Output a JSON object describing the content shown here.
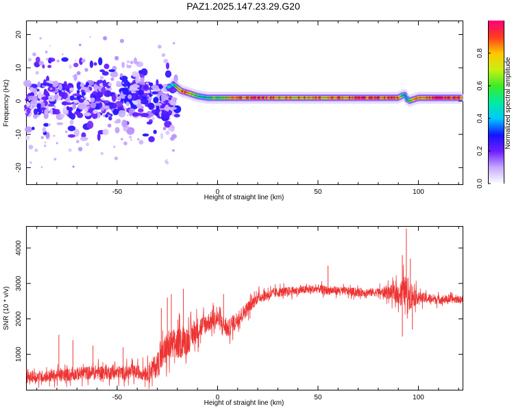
{
  "title": "PAZ1.2025.147.23.29.G20",
  "colors": {
    "snr_line": "#ee3333",
    "spec_low": "#a38cff",
    "spec_mid_blue": "#6a1aff",
    "spec_cyan": "#00e0ff",
    "spec_green": "#33ee33",
    "spec_red": "#ff3030"
  },
  "colorbar": {
    "label": "Normalized spectral amplitude",
    "ticks": [
      "0.0",
      "0.2",
      "0.4",
      "0.6",
      "0.8"
    ],
    "tick_values": [
      0.0,
      0.2,
      0.4,
      0.6,
      0.8
    ],
    "range": [
      0,
      1
    ],
    "colormap": "rainbow (white-purple-blue-cyan-green-yellow-red-magenta)"
  },
  "chart_data": [
    {
      "type": "heatmap",
      "name": "spectrogram",
      "xlabel": "Height of straight line (km)",
      "ylabel": "Frequency (Hz)",
      "xlim": [
        -95,
        122
      ],
      "ylim": [
        -25,
        24
      ],
      "x_ticks": [
        -50,
        0,
        50,
        100
      ],
      "x_tick_labels": [
        "-50",
        "0",
        "50",
        "100"
      ],
      "y_ticks": [
        -20,
        -10,
        0,
        10,
        20
      ],
      "y_tick_labels": [
        "-20",
        "-10",
        "0",
        "10",
        "20"
      ],
      "ridge": {
        "x": [
          -30,
          -25,
          -22,
          -18,
          -15,
          -10,
          -5,
          0,
          5,
          10,
          20,
          30,
          40,
          50,
          60,
          70,
          80,
          90,
          93,
          95,
          100,
          110,
          122
        ],
        "freq": [
          2,
          4,
          5,
          3,
          2.5,
          1.5,
          1,
          1,
          1,
          1,
          1,
          1,
          1,
          1,
          1,
          1,
          1,
          1,
          2,
          0,
          1,
          1,
          1
        ],
        "amplitude": [
          0.2,
          0.3,
          0.4,
          0.9,
          0.9,
          0.5,
          0.5,
          0.6,
          0.7,
          0.8,
          0.9,
          0.8,
          0.8,
          0.8,
          0.85,
          0.9,
          0.9,
          0.85,
          0.4,
          0.5,
          0.8,
          0.95,
          0.9
        ]
      },
      "noise_region": {
        "x_range": [
          -95,
          -20
        ],
        "freq_range": [
          -20,
          20
        ],
        "amplitude": 0.15
      }
    },
    {
      "type": "line",
      "name": "snr",
      "xlabel": "Height of straight line (km)",
      "ylabel": "SNR (10 * v/v)",
      "xlim": [
        -95,
        122
      ],
      "ylim": [
        0,
        4600
      ],
      "x_ticks": [
        -50,
        0,
        50,
        100
      ],
      "x_tick_labels": [
        "-50",
        "0",
        "50",
        "100"
      ],
      "y_ticks": [
        1000,
        2000,
        3000,
        4000
      ],
      "y_tick_labels": [
        "1000",
        "2000",
        "3000",
        "4000"
      ],
      "envelope": {
        "x": [
          -95,
          -80,
          -70,
          -60,
          -50,
          -40,
          -35,
          -30,
          -25,
          -20,
          -15,
          -10,
          -5,
          0,
          5,
          10,
          15,
          20,
          30,
          40,
          50,
          55,
          60,
          70,
          80,
          85,
          90,
          93,
          95,
          100,
          110,
          122
        ],
        "y": [
          350,
          400,
          450,
          500,
          480,
          500,
          480,
          700,
          1200,
          1300,
          1400,
          1700,
          1900,
          2000,
          1700,
          2000,
          2300,
          2600,
          2750,
          2800,
          2850,
          2800,
          2800,
          2750,
          2750,
          2750,
          2700,
          2800,
          2700,
          2600,
          2550,
          2550
        ]
      },
      "noise_amp": {
        "x": [
          -95,
          -60,
          -40,
          -35,
          -25,
          -15,
          -5,
          10,
          20,
          40,
          80,
          88,
          95,
          100,
          122
        ],
        "y": [
          200,
          250,
          250,
          300,
          600,
          500,
          350,
          300,
          200,
          150,
          150,
          300,
          600,
          200,
          120
        ]
      },
      "spikes": [
        {
          "x": -79,
          "y": 1550
        },
        {
          "x": -72,
          "y": 1400
        },
        {
          "x": -62,
          "y": 1250
        },
        {
          "x": -47,
          "y": 1200
        },
        {
          "x": -28,
          "y": 2300
        },
        {
          "x": -25,
          "y": 2600
        },
        {
          "x": -23,
          "y": 2700
        },
        {
          "x": -17,
          "y": 2850
        },
        {
          "x": 3,
          "y": 2700
        },
        {
          "x": 55,
          "y": 3500
        },
        {
          "x": 92,
          "y": 3800
        },
        {
          "x": 94,
          "y": 4550
        },
        {
          "x": 96,
          "y": 3700
        },
        {
          "x": 92,
          "y": 1500
        },
        {
          "x": 97,
          "y": 1700
        }
      ]
    }
  ]
}
